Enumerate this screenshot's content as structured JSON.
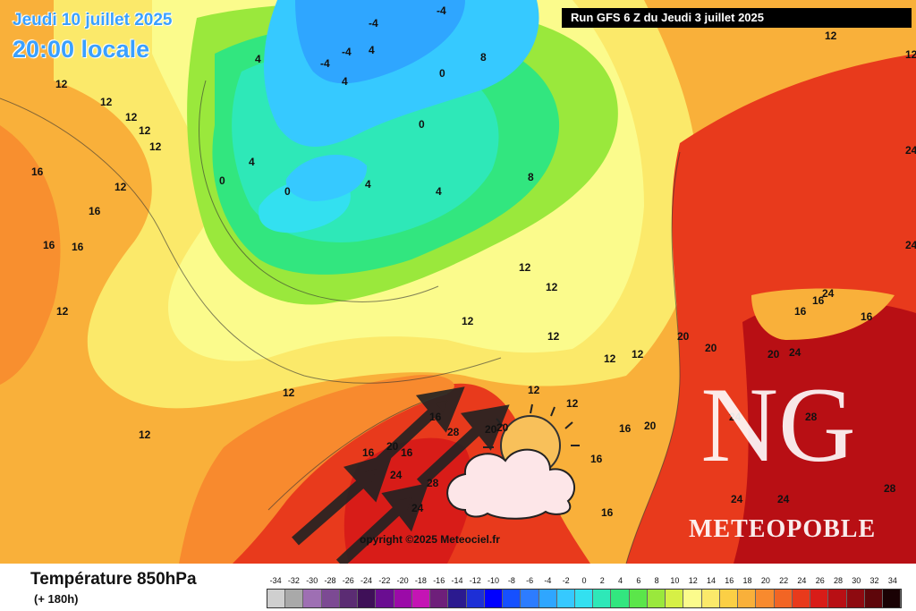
{
  "header": {
    "date": "Jeudi 10 juillet 2025",
    "time": "20:00 locale",
    "run": "Run GFS 6 Z du Jeudi 3 juillet 2025"
  },
  "copyright": "opyright ©2025 Meteociel.fr",
  "brand": {
    "initials": "NG",
    "name": "METEOPOBLE"
  },
  "legend": {
    "title": "Température 850hPa",
    "subtitle": "(+ 180h)",
    "scale": [
      {
        "value": "-34",
        "color": "#cfcfcf"
      },
      {
        "value": "-32",
        "color": "#a9a9a9"
      },
      {
        "value": "-30",
        "color": "#9e6fb3"
      },
      {
        "value": "-28",
        "color": "#7c4a93"
      },
      {
        "value": "-26",
        "color": "#5b2c73"
      },
      {
        "value": "-24",
        "color": "#3f1058"
      },
      {
        "value": "-22",
        "color": "#6a0d91"
      },
      {
        "value": "-20",
        "color": "#9b0aa8"
      },
      {
        "value": "-18",
        "color": "#c414b4"
      },
      {
        "value": "-16",
        "color": "#6e1f7a"
      },
      {
        "value": "-14",
        "color": "#2b1a8f"
      },
      {
        "value": "-12",
        "color": "#1d2fd6"
      },
      {
        "value": "-10",
        "color": "#0000ff"
      },
      {
        "value": "-8",
        "color": "#1650ff"
      },
      {
        "value": "-6",
        "color": "#2d7cff"
      },
      {
        "value": "-4",
        "color": "#2fa6ff"
      },
      {
        "value": "-2",
        "color": "#36c9ff"
      },
      {
        "value": "0",
        "color": "#33e0f0"
      },
      {
        "value": "2",
        "color": "#2ee8b8"
      },
      {
        "value": "4",
        "color": "#32e67f"
      },
      {
        "value": "6",
        "color": "#5be64a"
      },
      {
        "value": "8",
        "color": "#9ae83c"
      },
      {
        "value": "10",
        "color": "#d6f046"
      },
      {
        "value": "12",
        "color": "#fbfb8c"
      },
      {
        "value": "14",
        "color": "#fbe96a"
      },
      {
        "value": "16",
        "color": "#fbcf45"
      },
      {
        "value": "18",
        "color": "#f9b03a"
      },
      {
        "value": "20",
        "color": "#f88a2e"
      },
      {
        "value": "22",
        "color": "#f26524"
      },
      {
        "value": "24",
        "color": "#e83a1c"
      },
      {
        "value": "26",
        "color": "#d81c18"
      },
      {
        "value": "28",
        "color": "#b80f14"
      },
      {
        "value": "30",
        "color": "#8e0a10"
      },
      {
        "value": "32",
        "color": "#5e060a"
      },
      {
        "value": "34",
        "color": "#1a0204"
      }
    ]
  },
  "map_labels": [
    {
      "text": "12"
    },
    {
      "text": "12"
    },
    {
      "text": "16"
    },
    {
      "text": "12"
    },
    {
      "text": "16"
    },
    {
      "text": "16"
    },
    {
      "text": "16"
    },
    {
      "text": "12"
    },
    {
      "text": "12"
    },
    {
      "text": "12"
    },
    {
      "text": "12"
    },
    {
      "text": "12"
    },
    {
      "text": "12"
    },
    {
      "text": "4"
    },
    {
      "text": "-4"
    },
    {
      "text": "-4"
    },
    {
      "text": "-4"
    },
    {
      "text": "-4"
    },
    {
      "text": "4"
    },
    {
      "text": "4"
    },
    {
      "text": "0"
    },
    {
      "text": "0"
    },
    {
      "text": "0"
    },
    {
      "text": "0"
    },
    {
      "text": "4"
    },
    {
      "text": "4"
    },
    {
      "text": "4"
    },
    {
      "text": "8"
    },
    {
      "text": "8"
    },
    {
      "text": "12"
    },
    {
      "text": "12"
    },
    {
      "text": "12"
    },
    {
      "text": "12"
    },
    {
      "text": "12"
    },
    {
      "text": "12"
    },
    {
      "text": "12"
    },
    {
      "text": "16"
    },
    {
      "text": "16"
    },
    {
      "text": "16"
    },
    {
      "text": "20"
    },
    {
      "text": "20"
    },
    {
      "text": "20"
    },
    {
      "text": "20"
    },
    {
      "text": "24"
    },
    {
      "text": "24"
    },
    {
      "text": "24"
    },
    {
      "text": "24"
    },
    {
      "text": "28"
    },
    {
      "text": "28"
    },
    {
      "text": "28"
    },
    {
      "text": "24"
    },
    {
      "text": "24"
    },
    {
      "text": "24"
    },
    {
      "text": "16"
    },
    {
      "text": "16"
    },
    {
      "text": "16"
    },
    {
      "text": "12"
    },
    {
      "text": "12"
    },
    {
      "text": "20"
    },
    {
      "text": "28"
    },
    {
      "text": "24"
    },
    {
      "text": "24"
    },
    {
      "text": "20"
    },
    {
      "text": "16"
    },
    {
      "text": "16"
    },
    {
      "text": "16"
    },
    {
      "text": "20"
    },
    {
      "text": "12"
    }
  ],
  "colors": {
    "banner_bg": "#000000",
    "header_text": "#3aa0ff"
  }
}
